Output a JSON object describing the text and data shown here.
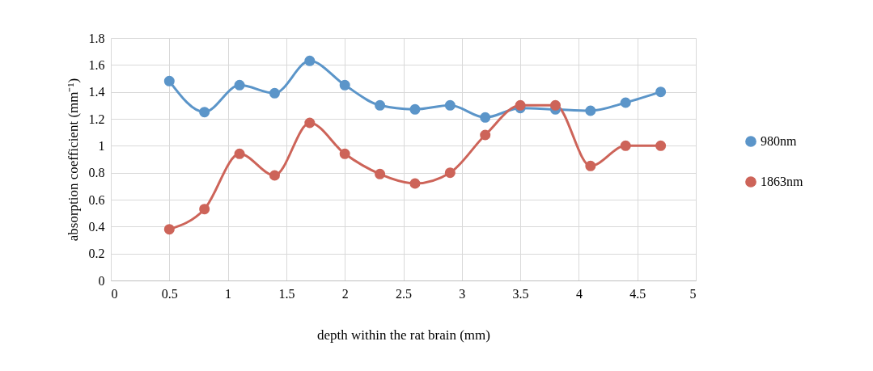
{
  "chart_data": {
    "type": "line",
    "xlabel": "depth within the rat brain (mm)",
    "ylabel": "absorption coefficient (mm⁻¹)",
    "x": [
      0.5,
      0.8,
      1.1,
      1.4,
      1.7,
      2.0,
      2.3,
      2.6,
      2.9,
      3.2,
      3.5,
      3.8,
      4.1,
      4.4,
      4.7
    ],
    "series": [
      {
        "name": "980nm",
        "color": "#5b95c9",
        "values": [
          1.48,
          1.25,
          1.45,
          1.39,
          1.63,
          1.45,
          1.3,
          1.27,
          1.3,
          1.21,
          1.28,
          1.27,
          1.26,
          1.32,
          1.4
        ]
      },
      {
        "name": "1863nm",
        "color": "#cd6459",
        "values": [
          0.38,
          0.53,
          0.94,
          0.78,
          1.17,
          0.94,
          0.79,
          0.72,
          0.8,
          1.08,
          1.3,
          1.3,
          0.85,
          1.0,
          1.0
        ]
      }
    ],
    "xlim": [
      0,
      5
    ],
    "xticks": [
      0,
      0.5,
      1,
      1.5,
      2,
      2.5,
      3,
      3.5,
      4,
      4.5,
      5
    ],
    "ylim": [
      0,
      1.8
    ],
    "yticks": [
      0,
      0.2,
      0.4,
      0.6,
      0.8,
      1,
      1.2,
      1.4,
      1.6,
      1.8
    ],
    "grid": true,
    "legend": "right",
    "marker": "circle",
    "line_style": "solid"
  }
}
